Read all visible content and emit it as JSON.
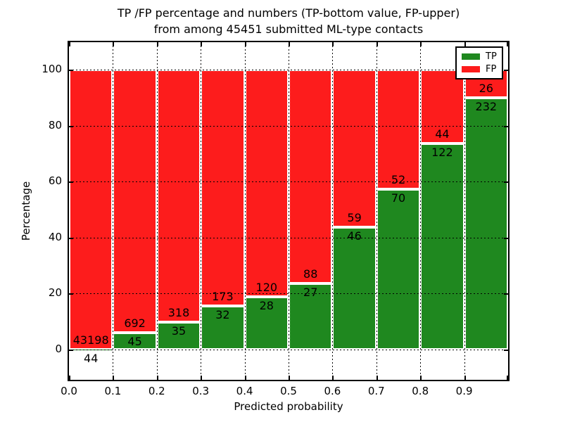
{
  "chart_data": {
    "type": "bar",
    "stacked": true,
    "title_line1": "TP /FP percentage and numbers (TP-bottom value, FP-upper)",
    "title_line2": "from among 45451 submitted ML-type contacts",
    "xlabel": "Predicted probability",
    "ylabel": "Percentage",
    "total_contacts": 45451,
    "xlim": [
      0.0,
      1.0
    ],
    "ylim": [
      -10,
      110
    ],
    "bin_width": 0.1,
    "grid": true,
    "x_tick_labels": [
      "0.0",
      "0.1",
      "0.2",
      "0.3",
      "0.4",
      "0.5",
      "0.6",
      "0.7",
      "0.8",
      "0.9"
    ],
    "y_ticks": [
      0,
      20,
      40,
      60,
      80,
      100
    ],
    "y_tick_labels": [
      "0",
      "20",
      "40",
      "60",
      "80",
      "100"
    ],
    "bins": [
      {
        "x_start": 0.0,
        "tp_count": 44,
        "fp_count": 43198,
        "tp_pct": 0.1,
        "fp_pct": 99.9
      },
      {
        "x_start": 0.1,
        "tp_count": 45,
        "fp_count": 692,
        "tp_pct": 6.1,
        "fp_pct": 93.9
      },
      {
        "x_start": 0.2,
        "tp_count": 35,
        "fp_count": 318,
        "tp_pct": 9.9,
        "fp_pct": 90.1
      },
      {
        "x_start": 0.3,
        "tp_count": 32,
        "fp_count": 173,
        "tp_pct": 15.6,
        "fp_pct": 84.4
      },
      {
        "x_start": 0.4,
        "tp_count": 28,
        "fp_count": 120,
        "tp_pct": 18.9,
        "fp_pct": 81.1
      },
      {
        "x_start": 0.5,
        "tp_count": 27,
        "fp_count": 88,
        "tp_pct": 23.5,
        "fp_pct": 76.5
      },
      {
        "x_start": 0.6,
        "tp_count": 46,
        "fp_count": 59,
        "tp_pct": 43.8,
        "fp_pct": 56.2
      },
      {
        "x_start": 0.7,
        "tp_count": 70,
        "fp_count": 52,
        "tp_pct": 57.4,
        "fp_pct": 42.6
      },
      {
        "x_start": 0.8,
        "tp_count": 122,
        "fp_count": 44,
        "tp_pct": 73.5,
        "fp_pct": 26.5
      },
      {
        "x_start": 0.9,
        "tp_count": 232,
        "fp_count": 26,
        "tp_pct": 89.9,
        "fp_pct": 10.1
      }
    ],
    "legend": {
      "position": "upper right",
      "entries": [
        {
          "label": "TP",
          "color": "#1f881f"
        },
        {
          "label": "FP",
          "color": "#fd1c1c"
        }
      ]
    },
    "colors": {
      "tp": "#1f881f",
      "fp": "#fd1c1c",
      "bar_edge": "#ffffff",
      "grid": "#000000",
      "frame": "#000000",
      "background": "#ffffff",
      "text": "#000000"
    }
  }
}
